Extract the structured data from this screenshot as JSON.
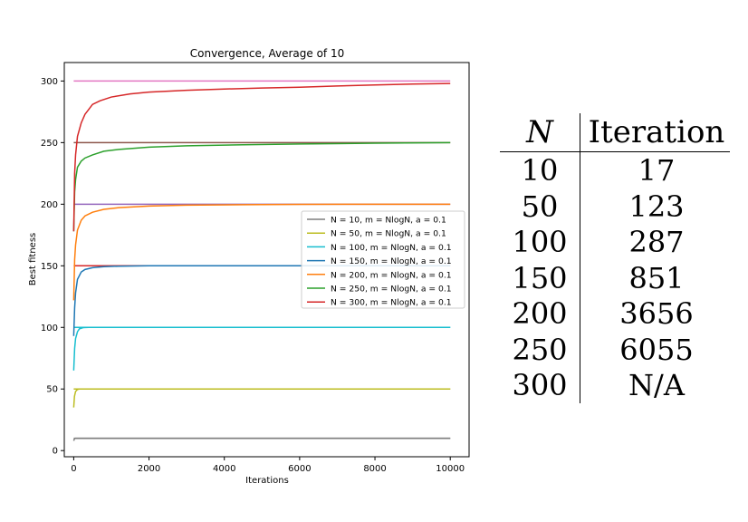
{
  "chart_data": {
    "type": "line",
    "title": "Convergence, Average of 10",
    "xlabel": "Iterations",
    "ylabel": "Best fitness",
    "xlim": [
      -250,
      10500
    ],
    "ylim": [
      -5,
      315
    ],
    "xticks": [
      0,
      2000,
      4000,
      6000,
      8000,
      10000
    ],
    "yticks": [
      0,
      50,
      100,
      150,
      200,
      250,
      300
    ],
    "legend_position": "center-right",
    "optimum_lines": [
      {
        "y": 10,
        "color": "#7f7f7f"
      },
      {
        "y": 50,
        "color": "#bcbd22"
      },
      {
        "y": 100,
        "color": "#17becf"
      },
      {
        "y": 150,
        "color": "#d62728"
      },
      {
        "y": 200,
        "color": "#9467bd"
      },
      {
        "y": 250,
        "color": "#8c564b"
      },
      {
        "y": 300,
        "color": "#e377c2"
      }
    ],
    "series": [
      {
        "name": "N = 10, m = NlogN, a = 0.1",
        "color": "#7f7f7f",
        "x": [
          0,
          20,
          40,
          10000
        ],
        "y": [
          8,
          9.6,
          10,
          10
        ]
      },
      {
        "name": "N = 50, m = NlogN, a = 0.1",
        "color": "#bcbd22",
        "x": [
          0,
          20,
          50,
          100,
          150,
          10000
        ],
        "y": [
          35,
          44,
          48,
          49.6,
          50,
          50
        ]
      },
      {
        "name": "N = 100, m = NlogN, a = 0.1",
        "color": "#17becf",
        "x": [
          0,
          25,
          50,
          100,
          150,
          250,
          400,
          10000
        ],
        "y": [
          65,
          83,
          91,
          96.5,
          98.8,
          99.8,
          100,
          100
        ]
      },
      {
        "name": "N = 150, m = NlogN, a = 0.1",
        "color": "#1f77b4",
        "x": [
          0,
          25,
          50,
          100,
          200,
          300,
          500,
          800,
          1200,
          2000,
          10000
        ],
        "y": [
          93,
          116,
          128,
          139,
          145,
          147,
          148.5,
          149.3,
          149.7,
          150,
          150
        ]
      },
      {
        "name": "N = 200, m = NlogN, a = 0.1",
        "color": "#ff7f0e",
        "x": [
          0,
          25,
          50,
          100,
          200,
          300,
          500,
          800,
          1200,
          2000,
          3000,
          4500,
          6000,
          10000
        ],
        "y": [
          122,
          155,
          167,
          179,
          187,
          190.5,
          193.5,
          195.8,
          197.2,
          198.5,
          199.2,
          199.6,
          199.9,
          200
        ]
      },
      {
        "name": "N = 250, m = NlogN, a = 0.1",
        "color": "#2ca02c",
        "x": [
          0,
          25,
          50,
          100,
          200,
          300,
          500,
          800,
          1200,
          2000,
          3000,
          4500,
          6000,
          8000,
          10000
        ],
        "y": [
          178,
          210,
          220,
          230,
          235,
          237.5,
          240,
          243,
          244.5,
          246.3,
          247.4,
          248.2,
          248.9,
          249.5,
          250
        ]
      },
      {
        "name": "N = 300, m = NlogN, a = 0.1",
        "color": "#d62728",
        "x": [
          0,
          25,
          50,
          100,
          200,
          300,
          400,
          500,
          700,
          1000,
          1500,
          2000,
          3000,
          4000,
          5000,
          6000,
          7000,
          8000,
          9000,
          10000
        ],
        "y": [
          178,
          225,
          240,
          255,
          266,
          273,
          277,
          281,
          284,
          287,
          289.5,
          291,
          292.5,
          293.5,
          294.3,
          295,
          296,
          296.8,
          297.5,
          298
        ]
      }
    ]
  },
  "table": {
    "headers": [
      "N",
      "Iteration"
    ],
    "rows": [
      [
        "10",
        "17"
      ],
      [
        "50",
        "123"
      ],
      [
        "100",
        "287"
      ],
      [
        "150",
        "851"
      ],
      [
        "200",
        "3656"
      ],
      [
        "250",
        "6055"
      ],
      [
        "300",
        "N/A"
      ]
    ]
  }
}
